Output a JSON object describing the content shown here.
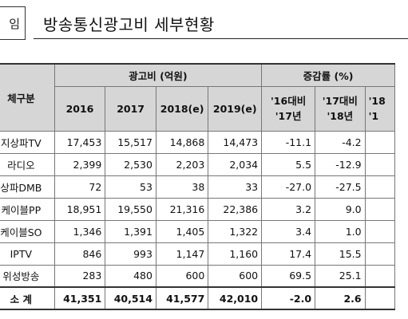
{
  "header": {
    "section_box": "임",
    "title": "방송통신광고비 세부현황"
  },
  "table": {
    "category_header": "체구분",
    "group_ad": "광고비 (억원)",
    "group_rate": "증감률 (%)",
    "years": [
      "2016",
      "2017",
      "2018(e)",
      "2019(e)"
    ],
    "rate_cols": [
      {
        "line1": "'16대비",
        "line2": "'17년"
      },
      {
        "line1": "'17대비",
        "line2": "'18년"
      },
      {
        "line1": "'18",
        "line2": "'1"
      }
    ],
    "rows": [
      {
        "label": "지상파TV",
        "cells": [
          "17,453",
          "15,517",
          "14,868",
          "14,473",
          "-11.1",
          "-4.2",
          ""
        ]
      },
      {
        "label": "라디오",
        "cells": [
          "2,399",
          "2,530",
          "2,203",
          "2,034",
          "5.5",
          "-12.9",
          ""
        ]
      },
      {
        "label": "상파DMB",
        "cells": [
          "72",
          "53",
          "38",
          "33",
          "-27.0",
          "-27.5",
          ""
        ]
      },
      {
        "label": "케이블PP",
        "cells": [
          "18,951",
          "19,550",
          "21,316",
          "22,386",
          "3.2",
          "9.0",
          ""
        ]
      },
      {
        "label": "케이블SO",
        "cells": [
          "1,346",
          "1,391",
          "1,405",
          "1,322",
          "3.4",
          "1.0",
          ""
        ]
      },
      {
        "label": "IPTV",
        "cells": [
          "846",
          "993",
          "1,147",
          "1,160",
          "17.4",
          "15.5",
          ""
        ]
      },
      {
        "label": "위성방송",
        "cells": [
          "283",
          "480",
          "600",
          "600",
          "69.5",
          "25.1",
          ""
        ]
      }
    ],
    "total": {
      "label": "소 계",
      "cells": [
        "41,351",
        "40,514",
        "41,577",
        "42,010",
        "-2.0",
        "2.6",
        ""
      ]
    }
  }
}
